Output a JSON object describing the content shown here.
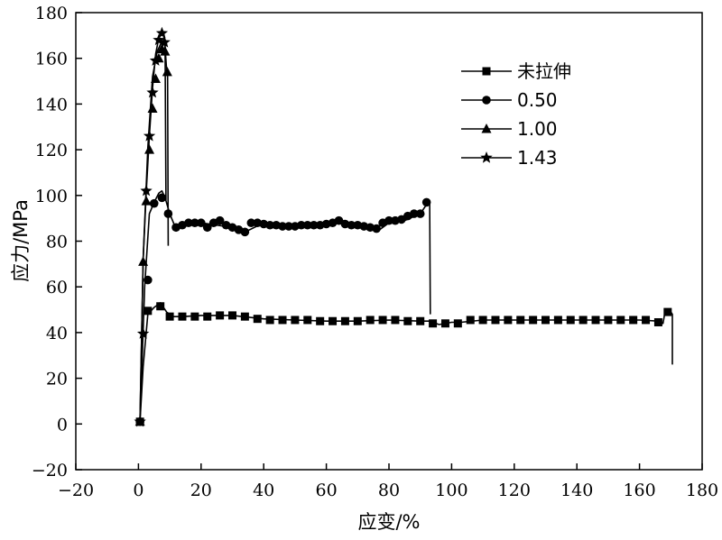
{
  "chart_data": {
    "type": "line",
    "title": "",
    "xlabel": "应变/%",
    "ylabel": "应力/MPa",
    "xlim": [
      -20,
      180
    ],
    "ylim": [
      -20,
      180
    ],
    "xticks": [
      -20,
      0,
      20,
      40,
      60,
      80,
      100,
      120,
      140,
      160,
      180
    ],
    "yticks": [
      -20,
      0,
      20,
      40,
      60,
      80,
      100,
      120,
      140,
      160,
      180
    ],
    "xtick_labels": [
      "−20",
      "0",
      "20",
      "40",
      "60",
      "80",
      "100",
      "120",
      "140",
      "160",
      "180"
    ],
    "ytick_labels": [
      "−20",
      "0",
      "20",
      "40",
      "60",
      "80",
      "100",
      "120",
      "140",
      "160",
      "180"
    ],
    "grid": false,
    "legend_position": "top-right",
    "color": "#000000",
    "series": [
      {
        "name": "未拉伸",
        "marker": "square",
        "x": [
          0.5,
          1.5,
          3,
          5,
          7,
          9,
          11,
          14,
          20,
          30,
          40,
          50,
          60,
          70,
          80,
          90,
          93,
          96,
          100,
          103,
          110,
          120,
          130,
          140,
          150,
          160,
          166,
          167.5,
          168,
          170,
          170.5,
          170.5
        ],
        "y": [
          1,
          25,
          48,
          51,
          53,
          49,
          47,
          47,
          47.5,
          47.5,
          46,
          45.5,
          45,
          45,
          45.5,
          45,
          45,
          43.5,
          44.5,
          44.5,
          45.5,
          45.5,
          45.5,
          45.5,
          45.5,
          45.5,
          45,
          44,
          48,
          49,
          48,
          26
        ],
        "marker_x": [
          0.5,
          3,
          7,
          10,
          14,
          18,
          22,
          26,
          30,
          34,
          38,
          42,
          46,
          50,
          54,
          58,
          62,
          66,
          70,
          74,
          78,
          82,
          86,
          90,
          94,
          98,
          102,
          106,
          110,
          114,
          118,
          122,
          126,
          130,
          134,
          138,
          142,
          146,
          150,
          154,
          158,
          162,
          166,
          169
        ],
        "marker_y": [
          1,
          49.5,
          51.5,
          47,
          47,
          47,
          47,
          47.5,
          47.5,
          47,
          46,
          45.5,
          45.5,
          45.5,
          45.5,
          45,
          45,
          45,
          45,
          45.5,
          45.5,
          45.5,
          45,
          45,
          44,
          44,
          44,
          45.5,
          45.5,
          45.5,
          45.5,
          45.5,
          45.5,
          45.5,
          45.5,
          45.5,
          45.5,
          45.5,
          45.5,
          45.5,
          45.5,
          45.5,
          44.5,
          49
        ]
      },
      {
        "name": "0.50",
        "marker": "circle",
        "x": [
          0.5,
          2,
          3.5,
          5,
          6.5,
          7.5,
          8.5,
          10,
          11.5,
          13,
          20,
          30,
          34,
          40,
          50,
          60,
          65,
          70,
          77,
          80,
          85,
          90,
          92,
          93,
          93.2
        ],
        "y": [
          1,
          60,
          92,
          97,
          101,
          102,
          99,
          92,
          87,
          86,
          88,
          86,
          84,
          88,
          86.5,
          87,
          89,
          87,
          85,
          88,
          89,
          92,
          96,
          97,
          48
        ],
        "marker_x": [
          0.5,
          3,
          5,
          7.5,
          9.5,
          12,
          14,
          16,
          18,
          20,
          22,
          24,
          26,
          28,
          30,
          32,
          34,
          36,
          38,
          40,
          42,
          44,
          46,
          48,
          50,
          52,
          54,
          56,
          58,
          60,
          62,
          64,
          66,
          68,
          70,
          72,
          74,
          76,
          78,
          80,
          82,
          84,
          86,
          88,
          90,
          92
        ],
        "marker_y": [
          1,
          63,
          96.5,
          99,
          92,
          86,
          87,
          88,
          88,
          88,
          86,
          88,
          89,
          87,
          86,
          85,
          84,
          88,
          88,
          87.5,
          87,
          87,
          86.5,
          86.5,
          86.5,
          87,
          87,
          87,
          87,
          87.5,
          88,
          89,
          87.5,
          87,
          87,
          86.5,
          86,
          85.5,
          88,
          89,
          89,
          89.5,
          91,
          92,
          92,
          97
        ]
      },
      {
        "name": "1.00",
        "marker": "triangle",
        "x": [
          0.5,
          1.5,
          3,
          4.5,
          6,
          7,
          8,
          8.5,
          9,
          9.3,
          9.5
        ],
        "y": [
          1,
          72,
          121,
          152,
          163,
          166,
          168,
          165,
          155,
          152,
          78
        ],
        "marker_x": [
          0.5,
          1.5,
          2.5,
          3.5,
          4.5,
          5.5,
          6.5,
          7.5,
          8.5,
          9.2
        ],
        "marker_y": [
          1,
          71,
          97.5,
          120,
          138,
          151,
          160,
          164,
          163,
          154
        ]
      },
      {
        "name": "1.43",
        "marker": "star",
        "x": [
          0.5,
          1.5,
          2.5,
          3.5,
          4.5,
          5.5,
          6.5,
          7.5,
          8,
          8.5,
          8.8
        ],
        "y": [
          1,
          72,
          102,
          126,
          147,
          162,
          169,
          171,
          170,
          166,
          98
        ],
        "marker_x": [
          0.5,
          1.5,
          2.5,
          3.5,
          4.5,
          5.5,
          6.5,
          7.5,
          8.3
        ],
        "marker_y": [
          1,
          39.5,
          102,
          126,
          145,
          159,
          168,
          171,
          167
        ]
      }
    ]
  }
}
